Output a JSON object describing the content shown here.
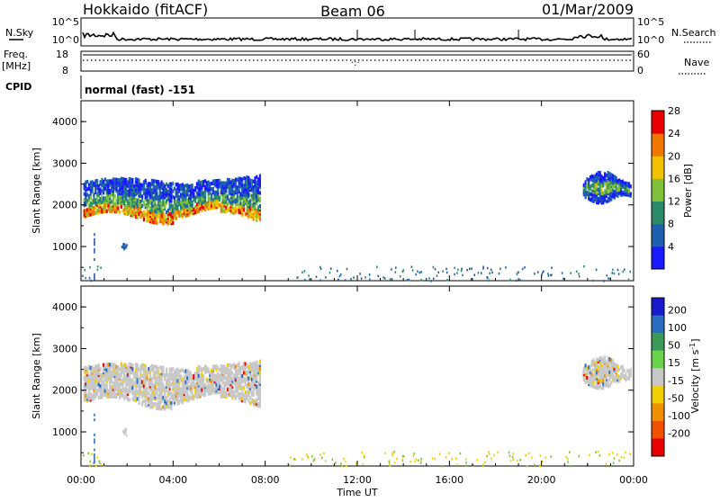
{
  "header": {
    "station": "Hokkaido (fitACF)",
    "beam": "Beam 06",
    "date": "01/Mar/2009"
  },
  "noise_panel": {
    "left_label": "N.Sky",
    "right_label": "N.Search",
    "left_ticks": [
      "10^5",
      "10^0"
    ],
    "right_ticks": [
      "10^5",
      "10^0"
    ]
  },
  "freq_panel": {
    "left_label_1": "Freq.",
    "left_label_2": "[MHz]",
    "right_label": "Nave",
    "left_ticks": [
      "18",
      "8"
    ],
    "right_ticks": [
      "60",
      "0"
    ],
    "cpid_label": "CPID"
  },
  "cpid_text": "normal (fast) -151",
  "chart_data": [
    {
      "type": "heatmap",
      "title": "",
      "xlabel": "",
      "ylabel": "Slant Range [km]",
      "xlim": [
        "00:00",
        "24:00"
      ],
      "ylim": [
        180,
        4500
      ],
      "yticks": [
        "1000",
        "2000",
        "3000",
        "4000"
      ],
      "colorbar": {
        "label": "Power [dB]",
        "ticks": [
          "4",
          "8",
          "12",
          "16",
          "20",
          "24",
          "28"
        ],
        "range": [
          0,
          32
        ],
        "colors": [
          "#1a1aff",
          "#1f5fb0",
          "#2a8a6a",
          "#7fc23a",
          "#f2c200",
          "#f07800",
          "#e80000"
        ]
      },
      "regions": [
        {
          "t_start": 0.1,
          "t_end": 7.8,
          "r_low": 1700,
          "r_high": 2600,
          "max_power_db": 28
        },
        {
          "t_start": 21.8,
          "t_end": 23.9,
          "r_low": 2200,
          "r_high": 2800,
          "max_power_db": 20
        }
      ]
    },
    {
      "type": "heatmap",
      "title": "",
      "xlabel": "Time UT",
      "ylabel": "Slant Range [km]",
      "xlim": [
        "00:00",
        "24:00"
      ],
      "ylim": [
        180,
        4500
      ],
      "xticks": [
        "00:00",
        "04:00",
        "08:00",
        "12:00",
        "16:00",
        "20:00",
        "00:00"
      ],
      "yticks": [
        "1000",
        "2000",
        "3000",
        "4000"
      ],
      "colorbar": {
        "label": "Velocity [m s^-1]",
        "ticks": [
          "200",
          "100",
          "50",
          "15",
          "-15",
          "-50",
          "-100",
          "-200"
        ],
        "range": [
          -250,
          250
        ],
        "colors": [
          "#1a1acc",
          "#2a6ec0",
          "#3a9a5a",
          "#6ad24a",
          "#c8c8c8",
          "#f2d000",
          "#f09000",
          "#f05000",
          "#e80000"
        ]
      },
      "regions": [
        {
          "t_start": 0.1,
          "t_end": 7.8,
          "r_low": 1700,
          "r_high": 2600,
          "dominant_velocity": "-15 to 15"
        },
        {
          "t_start": 21.8,
          "t_end": 23.9,
          "r_low": 2200,
          "r_high": 2800,
          "dominant_velocity": "-15 to 15"
        }
      ]
    }
  ]
}
